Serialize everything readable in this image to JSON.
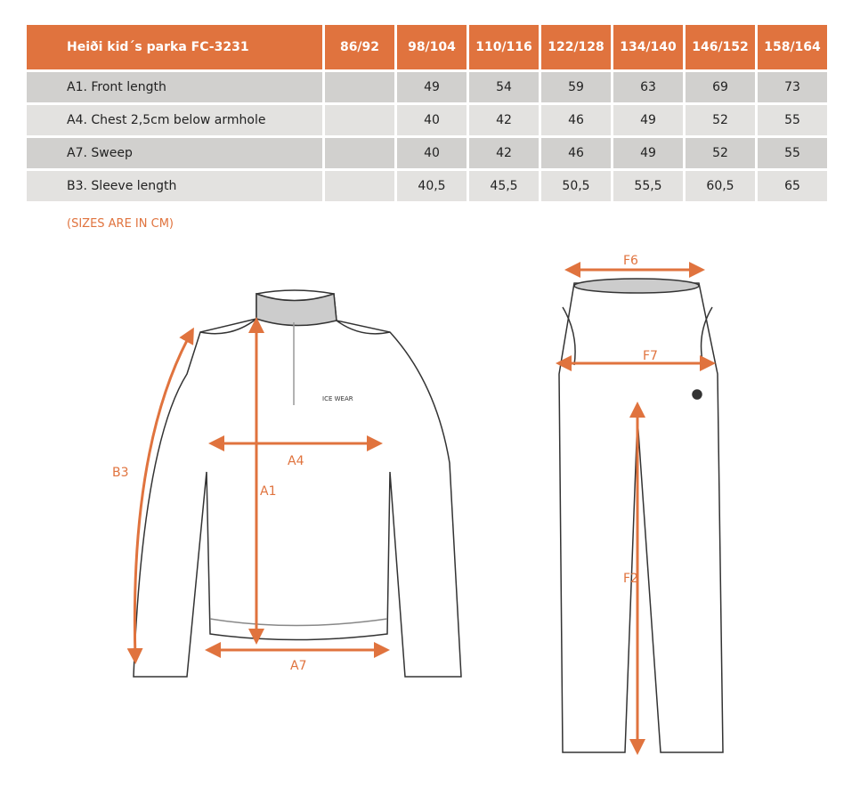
{
  "table": {
    "title": "Heiði kid´s parka FC-3231",
    "sizes": [
      "86/92",
      "98/104",
      "110/116",
      "122/128",
      "134/140",
      "146/152",
      "158/164"
    ],
    "rows": [
      {
        "label": "A1. Front length",
        "values": [
          "",
          "49",
          "54",
          "59",
          "63",
          "69",
          "73"
        ]
      },
      {
        "label": "A4. Chest 2,5cm below armhole",
        "values": [
          "",
          "40",
          "42",
          "46",
          "49",
          "52",
          "55"
        ]
      },
      {
        "label": "A7. Sweep",
        "values": [
          "",
          "40",
          "42",
          "46",
          "49",
          "52",
          "55"
        ]
      },
      {
        "label": "B3. Sleeve length",
        "values": [
          "",
          "40,5",
          "45,5",
          "50,5",
          "55,5",
          "60,5",
          "65"
        ]
      }
    ]
  },
  "note": "(SIZES ARE IN CM)",
  "diagram": {
    "accent": "#e0733e",
    "top_labels": {
      "b3": "B3",
      "a4": "A4",
      "a1": "A1",
      "a7": "A7"
    },
    "logo": "ICE WEAR",
    "pants_labels": {
      "f6": "F6",
      "f7": "F7",
      "f2": "F2"
    }
  }
}
